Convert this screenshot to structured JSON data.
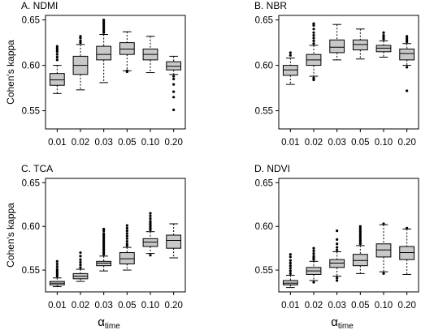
{
  "y_axis_label": "Cohen's kappa",
  "x_axis_label": {
    "main": "α",
    "sub": "time"
  },
  "chart_data": [
    {
      "type": "box",
      "title": "A. NDMI",
      "categories": [
        "0.01",
        "0.02",
        "0.03",
        "0.05",
        "0.10",
        "0.20"
      ],
      "ylabel": "Cohen's kappa",
      "ylim": [
        0.53,
        0.655
      ],
      "yticks": [
        "0.55",
        "0.60",
        "0.65"
      ],
      "boxes": [
        {
          "whisker_low": 0.569,
          "q1": 0.578,
          "median": 0.584,
          "q3": 0.591,
          "whisker_high": 0.6,
          "outliers": [
            0.606,
            0.609,
            0.612,
            0.615,
            0.617,
            0.619,
            0.621
          ]
        },
        {
          "whisker_low": 0.573,
          "q1": 0.59,
          "median": 0.6,
          "q3": 0.61,
          "whisker_high": 0.623,
          "outliers": [
            0.625,
            0.627,
            0.63,
            0.632
          ]
        },
        {
          "whisker_low": 0.581,
          "q1": 0.606,
          "median": 0.612,
          "q3": 0.621,
          "whisker_high": 0.634,
          "outliers": [
            0.636,
            0.638,
            0.64,
            0.642,
            0.644,
            0.646,
            0.648,
            0.65
          ]
        },
        {
          "whisker_low": 0.594,
          "q1": 0.612,
          "median": 0.618,
          "q3": 0.625,
          "whisker_high": 0.637,
          "outliers": [
            0.593,
            0.594
          ]
        },
        {
          "whisker_low": 0.592,
          "q1": 0.606,
          "median": 0.612,
          "q3": 0.618,
          "whisker_high": 0.632,
          "outliers": []
        },
        {
          "whisker_low": 0.59,
          "q1": 0.595,
          "median": 0.599,
          "q3": 0.604,
          "whisker_high": 0.61,
          "outliers": [
            0.588,
            0.585,
            0.579,
            0.571,
            0.565,
            0.551
          ]
        }
      ]
    },
    {
      "type": "box",
      "title": "B. NBR",
      "categories": [
        "0.01",
        "0.02",
        "0.03",
        "0.05",
        "0.10",
        "0.20"
      ],
      "ylabel": "",
      "ylim": [
        0.53,
        0.655
      ],
      "yticks": [
        "0.55",
        "0.60",
        "0.65"
      ],
      "boxes": [
        {
          "whisker_low": 0.579,
          "q1": 0.589,
          "median": 0.595,
          "q3": 0.6,
          "whisker_high": 0.608,
          "outliers": [
            0.611,
            0.614
          ]
        },
        {
          "whisker_low": 0.588,
          "q1": 0.6,
          "median": 0.606,
          "q3": 0.612,
          "whisker_high": 0.622,
          "outliers": [
            0.624,
            0.627,
            0.63,
            0.633,
            0.636,
            0.64,
            0.644,
            0.646,
            0.584,
            0.586
          ]
        },
        {
          "whisker_low": 0.606,
          "q1": 0.614,
          "median": 0.62,
          "q3": 0.628,
          "whisker_high": 0.645,
          "outliers": []
        },
        {
          "whisker_low": 0.607,
          "q1": 0.617,
          "median": 0.623,
          "q3": 0.628,
          "whisker_high": 0.64,
          "outliers": []
        },
        {
          "whisker_low": 0.609,
          "q1": 0.615,
          "median": 0.619,
          "q3": 0.622,
          "whisker_high": 0.627,
          "outliers": [
            0.629,
            0.631,
            0.633,
            0.636
          ]
        },
        {
          "whisker_low": 0.6,
          "q1": 0.606,
          "median": 0.613,
          "q3": 0.618,
          "whisker_high": 0.624,
          "outliers": [
            0.626,
            0.628,
            0.63,
            0.632,
            0.598,
            0.572
          ]
        }
      ]
    },
    {
      "type": "box",
      "title": "C. TCA",
      "categories": [
        "0.01",
        "0.02",
        "0.03",
        "0.05",
        "0.10",
        "0.20"
      ],
      "ylabel": "Cohen's kappa",
      "ylim": [
        0.525,
        0.655
      ],
      "yticks": [
        "0.55",
        "0.60",
        "0.65"
      ],
      "boxes": [
        {
          "whisker_low": 0.531,
          "q1": 0.533,
          "median": 0.535,
          "q3": 0.537,
          "whisker_high": 0.541,
          "outliers": [
            0.543,
            0.545,
            0.547,
            0.549,
            0.551,
            0.554,
            0.557,
            0.56
          ]
        },
        {
          "whisker_low": 0.537,
          "q1": 0.54,
          "median": 0.543,
          "q3": 0.546,
          "whisker_high": 0.551,
          "outliers": [
            0.553,
            0.556,
            0.559,
            0.562,
            0.566,
            0.57
          ]
        },
        {
          "whisker_low": 0.549,
          "q1": 0.555,
          "median": 0.558,
          "q3": 0.56,
          "whisker_high": 0.566,
          "outliers": [
            0.568,
            0.57,
            0.572,
            0.574,
            0.576,
            0.578,
            0.58,
            0.582,
            0.584,
            0.586,
            0.588,
            0.59,
            0.592,
            0.595,
            0.597
          ]
        },
        {
          "whisker_low": 0.55,
          "q1": 0.557,
          "median": 0.563,
          "q3": 0.57,
          "whisker_high": 0.576,
          "outliers": [
            0.578,
            0.58,
            0.583,
            0.586,
            0.589,
            0.592,
            0.595,
            0.598,
            0.601
          ]
        },
        {
          "whisker_low": 0.569,
          "q1": 0.577,
          "median": 0.582,
          "q3": 0.586,
          "whisker_high": 0.594,
          "outliers": [
            0.596,
            0.598,
            0.6,
            0.602,
            0.604,
            0.606,
            0.609,
            0.612,
            0.615,
            0.567
          ]
        },
        {
          "whisker_low": 0.564,
          "q1": 0.575,
          "median": 0.584,
          "q3": 0.59,
          "whisker_high": 0.603,
          "outliers": []
        }
      ]
    },
    {
      "type": "box",
      "title": "D. NDVI",
      "categories": [
        "0.01",
        "0.02",
        "0.03",
        "0.05",
        "0.10",
        "0.20"
      ],
      "ylabel": "",
      "ylim": [
        0.525,
        0.655
      ],
      "yticks": [
        "0.55",
        "0.60",
        "0.65"
      ],
      "boxes": [
        {
          "whisker_low": 0.53,
          "q1": 0.533,
          "median": 0.535,
          "q3": 0.538,
          "whisker_high": 0.544,
          "outliers": [
            0.546,
            0.549,
            0.552,
            0.555,
            0.558,
            0.561,
            0.565,
            0.568
          ]
        },
        {
          "whisker_low": 0.538,
          "q1": 0.545,
          "median": 0.549,
          "q3": 0.553,
          "whisker_high": 0.56,
          "outliers": [
            0.562,
            0.564,
            0.566,
            0.569,
            0.572,
            0.575,
            0.536
          ]
        },
        {
          "whisker_low": 0.543,
          "q1": 0.553,
          "median": 0.558,
          "q3": 0.562,
          "whisker_high": 0.571,
          "outliers": [
            0.573,
            0.576,
            0.58,
            0.585,
            0.595,
            0.541,
            0.538
          ]
        },
        {
          "whisker_low": 0.546,
          "q1": 0.555,
          "median": 0.561,
          "q3": 0.568,
          "whisker_high": 0.578,
          "outliers": [
            0.58,
            0.582,
            0.584,
            0.586,
            0.588,
            0.59,
            0.592,
            0.594,
            0.596,
            0.598,
            0.6
          ]
        },
        {
          "whisker_low": 0.548,
          "q1": 0.565,
          "median": 0.573,
          "q3": 0.58,
          "whisker_high": 0.602,
          "outliers": [
            0.603,
            0.546
          ]
        },
        {
          "whisker_low": 0.545,
          "q1": 0.562,
          "median": 0.57,
          "q3": 0.577,
          "whisker_high": 0.597,
          "outliers": [
            0.598
          ]
        }
      ]
    }
  ]
}
